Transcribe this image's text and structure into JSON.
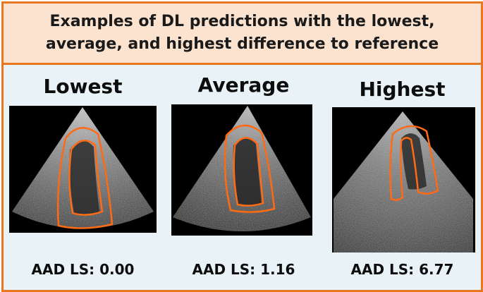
{
  "header": {
    "line1": "Examples of DL predictions with the lowest,",
    "line2": "average, and highest difference to reference"
  },
  "panels": [
    {
      "title": "Lowest",
      "value": "AAD LS: 0.00",
      "contour_color": "#ff6a13"
    },
    {
      "title": "Average",
      "value": "AAD LS: 1.16",
      "contour_color": "#ff6a13"
    },
    {
      "title": "Highest",
      "value": "AAD LS: 6.77",
      "contour_color": "#ff6a13"
    }
  ]
}
